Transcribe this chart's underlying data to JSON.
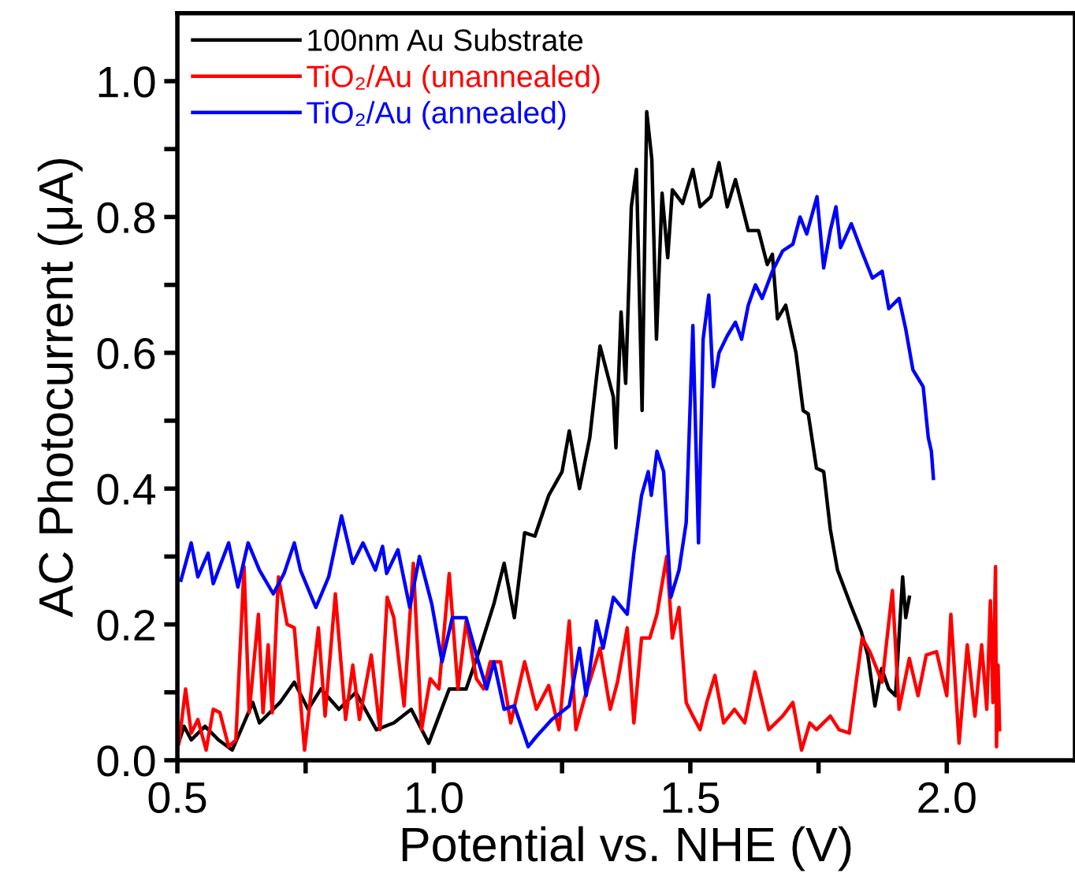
{
  "chart_data": {
    "type": "line",
    "xlabel": "Potential vs. NHE (V)",
    "ylabel": "AC Photocurrent (μA)",
    "xlim": [
      0.5,
      2.25
    ],
    "ylim": [
      0,
      1.1
    ],
    "xticks": [
      {
        "value": 0.5,
        "label": "0.5"
      },
      {
        "value": 0.75,
        "label": null
      },
      {
        "value": 1.0,
        "label": "1.0"
      },
      {
        "value": 1.25,
        "label": null
      },
      {
        "value": 1.5,
        "label": "1.5"
      },
      {
        "value": 1.75,
        "label": null
      },
      {
        "value": 2.0,
        "label": "2.0"
      }
    ],
    "yticks": [
      {
        "value": 0,
        "label": "0.0"
      },
      {
        "value": 0.1,
        "label": null
      },
      {
        "value": 0.2,
        "label": "0.2"
      },
      {
        "value": 0.3,
        "label": null
      },
      {
        "value": 0.4,
        "label": "0.4"
      },
      {
        "value": 0.5,
        "label": null
      },
      {
        "value": 0.6,
        "label": "0.6"
      },
      {
        "value": 0.7,
        "label": null
      },
      {
        "value": 0.8,
        "label": "0.8"
      },
      {
        "value": 0.9,
        "label": null
      },
      {
        "value": 1.0,
        "label": "1.0"
      }
    ],
    "legend": "top left",
    "grid": false,
    "marker": "none",
    "line_style": "solid",
    "series": [
      {
        "name": "100nm Au Substrate",
        "color": "#000000",
        "x": [
          0.5,
          0.513,
          0.527,
          0.554,
          0.58,
          0.607,
          0.627,
          0.647,
          0.66,
          0.7,
          0.728,
          0.755,
          0.78,
          0.815,
          0.848,
          0.888,
          0.922,
          0.956,
          0.99,
          1.01,
          1.03,
          1.063,
          1.09,
          1.117,
          1.137,
          1.157,
          1.177,
          1.197,
          1.224,
          1.25,
          1.264,
          1.284,
          1.304,
          1.324,
          1.35,
          1.355,
          1.365,
          1.374,
          1.385,
          1.395,
          1.406,
          1.415,
          1.425,
          1.434,
          1.445,
          1.456,
          1.465,
          1.485,
          1.505,
          1.519,
          1.54,
          1.556,
          1.572,
          1.588,
          1.613,
          1.633,
          1.65,
          1.66,
          1.67,
          1.686,
          1.706,
          1.72,
          1.73,
          1.746,
          1.76,
          1.773,
          1.787,
          1.812,
          1.833,
          1.846,
          1.86,
          1.873,
          1.887,
          1.9,
          1.914,
          1.92,
          1.927
        ],
        "values": [
          0.02,
          0.05,
          0.03,
          0.05,
          0.03,
          0.015,
          0.05,
          0.085,
          0.055,
          0.085,
          0.115,
          0.075,
          0.105,
          0.075,
          0.1,
          0.045,
          0.055,
          0.075,
          0.025,
          0.065,
          0.105,
          0.105,
          0.165,
          0.23,
          0.29,
          0.21,
          0.335,
          0.33,
          0.39,
          0.425,
          0.485,
          0.4,
          0.475,
          0.61,
          0.535,
          0.46,
          0.66,
          0.555,
          0.815,
          0.87,
          0.515,
          0.955,
          0.885,
          0.62,
          0.835,
          0.74,
          0.84,
          0.82,
          0.87,
          0.815,
          0.83,
          0.88,
          0.815,
          0.855,
          0.78,
          0.78,
          0.73,
          0.745,
          0.65,
          0.67,
          0.6,
          0.515,
          0.51,
          0.43,
          0.425,
          0.34,
          0.28,
          0.23,
          0.19,
          0.155,
          0.08,
          0.135,
          0.105,
          0.095,
          0.27,
          0.21,
          0.24
        ]
      },
      {
        "name": "TiO₂/Au (unannealed)",
        "color": "#ff0000",
        "x": [
          0.503,
          0.516,
          0.527,
          0.54,
          0.556,
          0.57,
          0.583,
          0.6,
          0.614,
          0.63,
          0.64,
          0.658,
          0.667,
          0.677,
          0.685,
          0.697,
          0.714,
          0.728,
          0.748,
          0.775,
          0.788,
          0.808,
          0.828,
          0.842,
          0.855,
          0.878,
          0.895,
          0.909,
          0.922,
          0.942,
          0.96,
          0.976,
          0.993,
          1.01,
          1.03,
          1.047,
          1.063,
          1.083,
          1.097,
          1.11,
          1.13,
          1.15,
          1.177,
          1.2,
          1.224,
          1.244,
          1.264,
          1.277,
          1.297,
          1.324,
          1.344,
          1.358,
          1.377,
          1.39,
          1.405,
          1.421,
          1.435,
          1.454,
          1.465,
          1.478,
          1.492,
          1.505,
          1.519,
          1.532,
          1.548,
          1.565,
          1.586,
          1.606,
          1.626,
          1.653,
          1.68,
          1.7,
          1.717,
          1.733,
          1.746,
          1.773,
          1.79,
          1.81,
          1.835,
          1.85,
          1.874,
          1.894,
          1.907,
          1.927,
          1.944,
          1.96,
          1.98,
          2.0,
          2.008,
          2.024,
          2.04,
          2.055,
          2.068,
          2.078,
          2.085,
          2.09,
          2.095,
          2.097,
          2.1,
          2.103
        ],
        "values": [
          0.025,
          0.105,
          0.04,
          0.06,
          0.015,
          0.075,
          0.07,
          0.02,
          0.03,
          0.285,
          0.07,
          0.215,
          0.07,
          0.17,
          0.07,
          0.27,
          0.2,
          0.195,
          0.015,
          0.195,
          0.065,
          0.245,
          0.06,
          0.14,
          0.06,
          0.155,
          0.045,
          0.24,
          0.21,
          0.08,
          0.29,
          0.045,
          0.12,
          0.105,
          0.275,
          0.105,
          0.205,
          0.12,
          0.105,
          0.145,
          0.145,
          0.055,
          0.145,
          0.075,
          0.11,
          0.045,
          0.205,
          0.045,
          0.1,
          0.165,
          0.075,
          0.115,
          0.195,
          0.055,
          0.18,
          0.18,
          0.215,
          0.3,
          0.18,
          0.225,
          0.085,
          0.065,
          0.045,
          0.085,
          0.125,
          0.055,
          0.075,
          0.055,
          0.13,
          0.045,
          0.065,
          0.085,
          0.015,
          0.055,
          0.045,
          0.065,
          0.045,
          0.04,
          0.18,
          0.16,
          0.115,
          0.25,
          0.075,
          0.15,
          0.095,
          0.155,
          0.16,
          0.095,
          0.215,
          0.025,
          0.17,
          0.065,
          0.17,
          0.075,
          0.235,
          0.085,
          0.285,
          0.02,
          0.14,
          0.045
        ]
      },
      {
        "name": "TiO₂/Au (annealed)",
        "color": "#0000ff",
        "x": [
          0.507,
          0.527,
          0.54,
          0.56,
          0.57,
          0.6,
          0.618,
          0.638,
          0.66,
          0.687,
          0.708,
          0.728,
          0.74,
          0.77,
          0.795,
          0.82,
          0.842,
          0.862,
          0.886,
          0.9,
          0.908,
          0.93,
          0.953,
          0.972,
          0.996,
          1.016,
          1.036,
          1.063,
          1.083,
          1.103,
          1.117,
          1.137,
          1.157,
          1.184,
          1.2,
          1.23,
          1.264,
          1.284,
          1.297,
          1.317,
          1.33,
          1.35,
          1.377,
          1.39,
          1.405,
          1.418,
          1.424,
          1.435,
          1.448,
          1.462,
          1.478,
          1.492,
          1.505,
          1.516,
          1.525,
          1.536,
          1.545,
          1.556,
          1.572,
          1.588,
          1.6,
          1.613,
          1.627,
          1.64,
          1.66,
          1.68,
          1.7,
          1.714,
          1.727,
          1.747,
          1.76,
          1.773,
          1.784,
          1.793,
          1.814,
          1.834,
          1.855,
          1.874,
          1.887,
          1.907,
          1.92,
          1.934,
          1.954,
          1.964,
          1.97,
          1.974
        ],
        "values": [
          0.265,
          0.32,
          0.27,
          0.305,
          0.26,
          0.32,
          0.255,
          0.32,
          0.28,
          0.245,
          0.275,
          0.32,
          0.28,
          0.225,
          0.27,
          0.36,
          0.29,
          0.32,
          0.28,
          0.315,
          0.275,
          0.31,
          0.225,
          0.3,
          0.23,
          0.145,
          0.21,
          0.21,
          0.155,
          0.105,
          0.145,
          0.075,
          0.08,
          0.02,
          0.035,
          0.06,
          0.08,
          0.165,
          0.095,
          0.205,
          0.165,
          0.24,
          0.215,
          0.305,
          0.39,
          0.425,
          0.39,
          0.455,
          0.425,
          0.24,
          0.28,
          0.35,
          0.64,
          0.32,
          0.62,
          0.685,
          0.55,
          0.6,
          0.625,
          0.645,
          0.62,
          0.67,
          0.7,
          0.68,
          0.72,
          0.75,
          0.76,
          0.8,
          0.775,
          0.83,
          0.725,
          0.78,
          0.815,
          0.755,
          0.79,
          0.75,
          0.71,
          0.72,
          0.665,
          0.68,
          0.635,
          0.575,
          0.55,
          0.475,
          0.455,
          0.415
        ]
      }
    ]
  }
}
